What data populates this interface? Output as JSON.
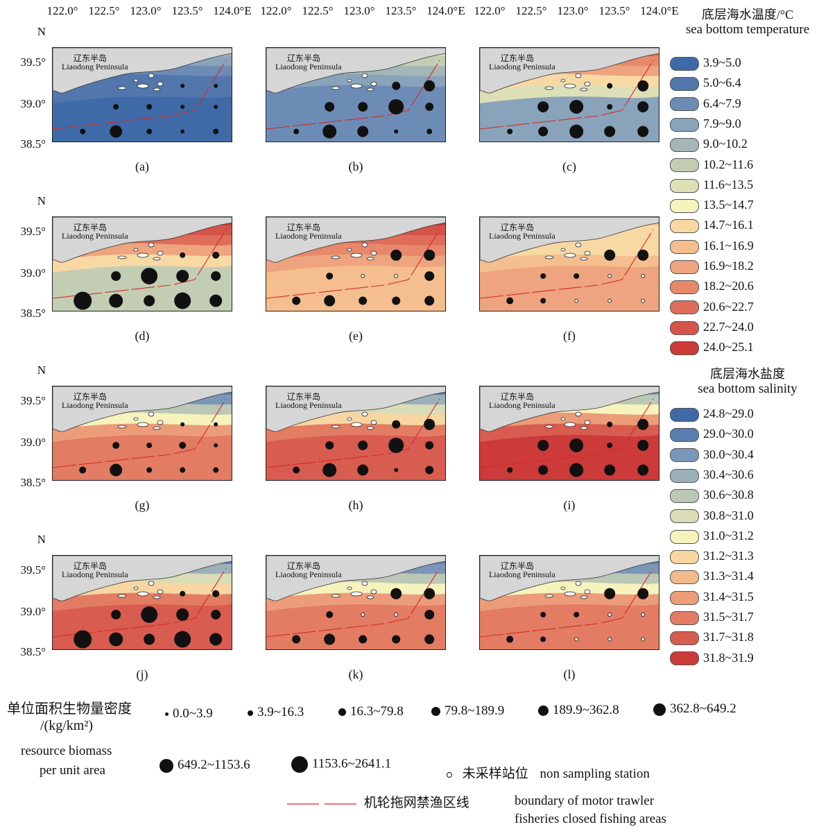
{
  "axes": {
    "lon_ticks": [
      "122.0°",
      "122.5°",
      "123.0°",
      "123.5°",
      "124.0°E"
    ],
    "lat_ticks": [
      "N",
      "39.5°",
      "39.0°",
      "38.5°"
    ]
  },
  "map_labels": {
    "cn": "辽东半岛",
    "en": "Liaodong Peninsula"
  },
  "panels": [
    {
      "label": "(a)",
      "type": "temperature",
      "palette": "cold"
    },
    {
      "label": "(b)",
      "type": "temperature",
      "palette": "cool"
    },
    {
      "label": "(c)",
      "type": "temperature",
      "palette": "warm-top"
    },
    {
      "label": "(d)",
      "type": "temperature",
      "palette": "warm-mixed"
    },
    {
      "label": "(e)",
      "type": "temperature",
      "palette": "hot"
    },
    {
      "label": "(f)",
      "type": "temperature",
      "palette": "mild"
    },
    {
      "label": "(g)",
      "type": "salinity",
      "palette": "sal1"
    },
    {
      "label": "(h)",
      "type": "salinity",
      "palette": "sal2"
    },
    {
      "label": "(i)",
      "type": "salinity",
      "palette": "sal3"
    },
    {
      "label": "(j)",
      "type": "salinity",
      "palette": "sal2"
    },
    {
      "label": "(k)",
      "type": "salinity",
      "palette": "sal1"
    },
    {
      "label": "(l)",
      "type": "salinity",
      "palette": "sal1"
    }
  ],
  "temperature_legend": {
    "title_cn": "底层海水温度/°C",
    "title_en": "sea bottom temperature",
    "items": [
      {
        "label": "3.9~5.0",
        "color": "#3f6aa8"
      },
      {
        "label": "5.0~6.4",
        "color": "#5277ad"
      },
      {
        "label": "6.4~7.9",
        "color": "#6d8cb5"
      },
      {
        "label": "7.9~9.0",
        "color": "#89a3ba"
      },
      {
        "label": "9.0~10.2",
        "color": "#a5b6b6"
      },
      {
        "label": "10.2~11.6",
        "color": "#c3cdb3"
      },
      {
        "label": "11.6~13.5",
        "color": "#dddfb6"
      },
      {
        "label": "13.5~14.7",
        "color": "#f6f3bd"
      },
      {
        "label": "14.7~16.1",
        "color": "#f8d9a4"
      },
      {
        "label": "16.1~16.9",
        "color": "#f4be8f"
      },
      {
        "label": "16.9~18.2",
        "color": "#eea47e"
      },
      {
        "label": "18.2~20.6",
        "color": "#e7886b"
      },
      {
        "label": "20.6~22.7",
        "color": "#de6d5a"
      },
      {
        "label": "22.7~24.0",
        "color": "#d5544a"
      },
      {
        "label": "24.0~25.1",
        "color": "#cc3a3a"
      }
    ]
  },
  "salinity_legend": {
    "title_cn": "底层海水盐度",
    "title_en": "sea bottom salinity",
    "items": [
      {
        "label": "24.8~29.0",
        "color": "#3f6aa8"
      },
      {
        "label": "29.0~30.0",
        "color": "#5a7db0"
      },
      {
        "label": "30.0~30.4",
        "color": "#7b97b8"
      },
      {
        "label": "30.4~30.6",
        "color": "#9cb0ba"
      },
      {
        "label": "30.6~30.8",
        "color": "#bcc8b6"
      },
      {
        "label": "30.8~31.0",
        "color": "#d9dcb6"
      },
      {
        "label": "31.0~31.2",
        "color": "#f6f3bd"
      },
      {
        "label": "31.2~31.3",
        "color": "#f8d6a1"
      },
      {
        "label": "31.3~31.4",
        "color": "#f3ba8c"
      },
      {
        "label": "31.4~31.5",
        "color": "#ec9c78"
      },
      {
        "label": "31.5~31.7",
        "color": "#e27c63"
      },
      {
        "label": "31.7~31.8",
        "color": "#d85c4f"
      },
      {
        "label": "31.8~31.9",
        "color": "#cc3a3a"
      }
    ]
  },
  "biomass_legend": {
    "title_cn": "单位面积生物量密度",
    "unit": "/(kg/km²)",
    "title_en_1": "resource biomass",
    "title_en_2": "per unit area",
    "classes": [
      "0.0~3.9",
      "3.9~16.3",
      "16.3~79.8",
      "79.8~189.9",
      "189.9~362.8",
      "362.8~649.2",
      "649.2~1153.6",
      "1153.6~2641.1"
    ],
    "non_sampling_cn": "未采样站位",
    "non_sampling_en": "non sampling station",
    "boundary_cn": "机轮拖网禁渔区线",
    "boundary_en_1": "boundary of motor trawler",
    "boundary_en_2": "fisheries closed fishing areas"
  }
}
